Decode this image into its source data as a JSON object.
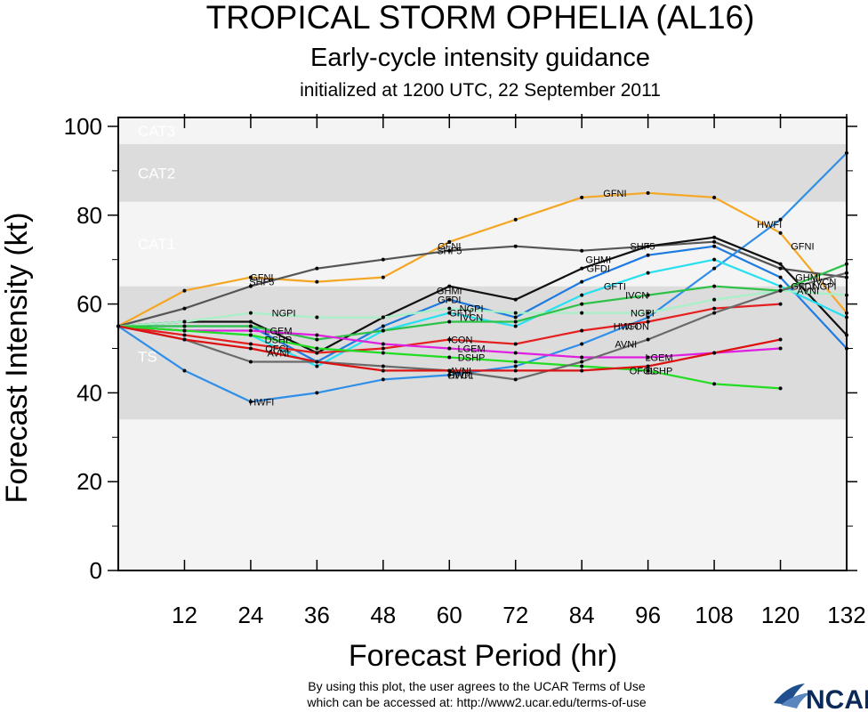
{
  "header": {
    "title": "TROPICAL STORM OPHELIA (AL16)",
    "subtitle": "Early-cycle intensity guidance",
    "initialized": "initialized at 1200 UTC, 22 September 2011"
  },
  "footer": {
    "line1": "By using this plot, the user agrees to the UCAR Terms of Use",
    "line2": "which can be accessed at: http://www2.ucar.edu/terms-of-use",
    "logo": "NCAR"
  },
  "colors": {
    "band_dark": "#dcdcdc",
    "band_light": "#f4f4f4",
    "frame": "#000000"
  },
  "chart_data": {
    "type": "line",
    "xlabel": "Forecast Period (hr)",
    "ylabel": "Forecast Intensity (kt)",
    "xlim": [
      0,
      132
    ],
    "ylim": [
      0,
      102
    ],
    "xticks": [
      12,
      24,
      36,
      48,
      60,
      72,
      84,
      96,
      108,
      120,
      132
    ],
    "yticks": [
      0,
      20,
      40,
      60,
      80,
      100
    ],
    "bands": [
      {
        "label": "",
        "from": 0,
        "to": 34,
        "shade": "light"
      },
      {
        "label": "TS",
        "from": 34,
        "to": 64,
        "shade": "dark"
      },
      {
        "label": "CAT1",
        "from": 64,
        "to": 83,
        "shade": "light"
      },
      {
        "label": "CAT2",
        "from": 83,
        "to": 96,
        "shade": "dark"
      },
      {
        "label": "CAT3",
        "from": 96,
        "to": 102,
        "shade": "light"
      }
    ],
    "series": [
      {
        "name": "GFNI",
        "color": "#f5a623",
        "label_at": [
          [
            26,
            66
          ],
          [
            60,
            73
          ],
          [
            90,
            85
          ],
          [
            124,
            73
          ]
        ],
        "x": [
          0,
          12,
          24,
          36,
          48,
          60,
          72,
          84,
          96,
          108,
          120,
          132
        ],
        "y": [
          55,
          63,
          66,
          65,
          66,
          74,
          79,
          84,
          85,
          84,
          76,
          58
        ]
      },
      {
        "name": "SHF5",
        "color": "#555555",
        "label_at": [
          [
            26,
            65
          ],
          [
            60,
            72
          ],
          [
            95,
            73
          ]
        ],
        "x": [
          0,
          12,
          24,
          36,
          48,
          60,
          72,
          84,
          96,
          108,
          120,
          132
        ],
        "y": [
          55,
          59,
          64,
          68,
          70,
          72,
          73,
          72,
          73,
          74,
          68,
          66
        ]
      },
      {
        "name": "HWFI",
        "color": "#2f8fe8",
        "label_at": [
          [
            26,
            38
          ],
          [
            62,
            44
          ],
          [
            92,
            55
          ],
          [
            118,
            78
          ]
        ],
        "x": [
          0,
          12,
          24,
          36,
          48,
          60,
          72,
          84,
          96,
          108,
          120,
          132
        ],
        "y": [
          55,
          45,
          38,
          40,
          43,
          44,
          46,
          51,
          57,
          68,
          79,
          94
        ]
      },
      {
        "name": "GHMI",
        "color": "#111111",
        "label_at": [
          [
            60,
            63
          ],
          [
            87,
            70
          ],
          [
            125,
            66
          ]
        ],
        "x": [
          0,
          12,
          24,
          36,
          48,
          60,
          72,
          84,
          96,
          108,
          120,
          132
        ],
        "y": [
          55,
          56,
          56,
          49,
          57,
          64,
          61,
          68,
          73,
          75,
          69,
          53
        ]
      },
      {
        "name": "GFDI",
        "color": "#1e7be0",
        "label_at": [
          [
            60,
            61
          ],
          [
            87,
            68
          ],
          [
            124,
            64
          ]
        ],
        "x": [
          0,
          12,
          24,
          36,
          48,
          60,
          72,
          84,
          96,
          108,
          120,
          132
        ],
        "y": [
          55,
          55,
          55,
          47,
          55,
          61,
          57,
          65,
          71,
          73,
          66,
          50
        ]
      },
      {
        "name": "GFTI",
        "color": "#27e0f0",
        "label_at": [
          [
            62,
            58
          ],
          [
            90,
            64
          ]
        ],
        "x": [
          0,
          12,
          24,
          36,
          48,
          60,
          72,
          84,
          96,
          108,
          120,
          132
        ],
        "y": [
          55,
          54,
          53,
          46,
          54,
          58,
          55,
          62,
          67,
          70,
          64,
          57
        ]
      },
      {
        "name": "NGPI",
        "color": "#a8f0c8",
        "label_at": [
          [
            30,
            58
          ],
          [
            64,
            59
          ],
          [
            95,
            58
          ],
          [
            128,
            64
          ]
        ],
        "x": [
          0,
          12,
          24,
          36,
          48,
          60,
          72,
          84,
          96,
          108,
          120,
          132
        ],
        "y": [
          55,
          56,
          58,
          57,
          57,
          59,
          58,
          58,
          58,
          61,
          63,
          62
        ]
      },
      {
        "name": "IVCN",
        "color": "#2fc24a",
        "label_at": [
          [
            64,
            57
          ],
          [
            94,
            62
          ],
          [
            128,
            65
          ]
        ],
        "x": [
          0,
          12,
          24,
          36,
          48,
          60,
          72,
          84,
          96,
          108,
          120,
          132
        ],
        "y": [
          55,
          55,
          55,
          52,
          54,
          56,
          56,
          60,
          62,
          64,
          63,
          69
        ]
      },
      {
        "name": "ICON",
        "color": "#e52020",
        "label_at": [
          [
            62,
            52
          ],
          [
            94,
            55
          ]
        ],
        "x": [
          0,
          12,
          24,
          36,
          48,
          60,
          72,
          84,
          96,
          108,
          120
        ],
        "y": [
          55,
          53,
          51,
          49,
          50,
          52,
          51,
          54,
          56,
          59,
          60
        ]
      },
      {
        "name": "LGEM",
        "color": "#e020e0",
        "label_at": [
          [
            29,
            54
          ],
          [
            64,
            50
          ],
          [
            98,
            48
          ]
        ],
        "x": [
          0,
          12,
          24,
          36,
          48,
          60,
          72,
          84,
          96,
          108,
          120
        ],
        "y": [
          55,
          54,
          54,
          53,
          51,
          50,
          49,
          48,
          48,
          49,
          50
        ]
      },
      {
        "name": "DSHP",
        "color": "#22dd22",
        "label_at": [
          [
            29,
            52
          ],
          [
            64,
            48
          ],
          [
            98,
            45
          ]
        ],
        "x": [
          0,
          12,
          24,
          36,
          48,
          60,
          72,
          84,
          96,
          108,
          120
        ],
        "y": [
          55,
          54,
          53,
          50,
          49,
          48,
          47,
          46,
          45,
          42,
          41
        ]
      },
      {
        "name": "AVNI",
        "color": "#6a6a6a",
        "label_at": [
          [
            29,
            49
          ],
          [
            62,
            45
          ],
          [
            92,
            51
          ],
          [
            125,
            63
          ]
        ],
        "x": [
          0,
          12,
          24,
          36,
          48,
          60,
          72,
          84,
          96,
          108,
          120,
          132
        ],
        "y": [
          55,
          52,
          47,
          47,
          46,
          45,
          43,
          47,
          52,
          58,
          63,
          67
        ]
      },
      {
        "name": "OFCL",
        "color": "#dd1111",
        "label_at": [
          [
            29,
            50
          ],
          [
            62,
            44
          ],
          [
            95,
            45
          ]
        ],
        "x": [
          0,
          12,
          24,
          36,
          48,
          60,
          72,
          84,
          96,
          108,
          120
        ],
        "y": [
          55,
          52,
          50,
          47,
          45,
          45,
          45,
          45,
          46,
          49,
          52
        ]
      }
    ]
  }
}
